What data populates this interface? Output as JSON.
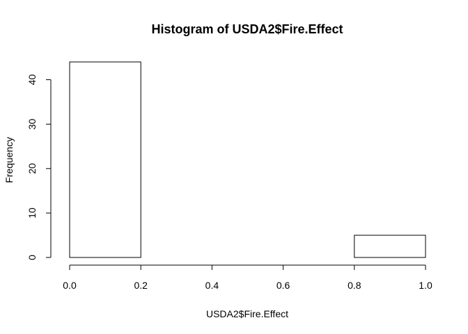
{
  "chart_data": {
    "type": "bar",
    "title": "Histogram of USDA2$Fire.Effect",
    "xlabel": "USDA2$Fire.Effect",
    "ylabel": "Frequency",
    "bins": [
      {
        "start": 0.0,
        "end": 0.2,
        "count": 44
      },
      {
        "start": 0.2,
        "end": 0.4,
        "count": 0
      },
      {
        "start": 0.4,
        "end": 0.6,
        "count": 0
      },
      {
        "start": 0.6,
        "end": 0.8,
        "count": 0
      },
      {
        "start": 0.8,
        "end": 1.0,
        "count": 5
      }
    ],
    "xlim": [
      0.0,
      1.0
    ],
    "ylim": [
      0,
      44
    ],
    "x_ticks": [
      "0.0",
      "0.2",
      "0.4",
      "0.6",
      "0.8",
      "1.0"
    ],
    "x_tick_values": [
      0.0,
      0.2,
      0.4,
      0.6,
      0.8,
      1.0
    ],
    "y_ticks": [
      "0",
      "10",
      "20",
      "30",
      "40"
    ],
    "y_tick_values": [
      0,
      10,
      20,
      30,
      40
    ],
    "grid": false,
    "bar_fill": "#ffffff",
    "bar_stroke": "#000000"
  }
}
